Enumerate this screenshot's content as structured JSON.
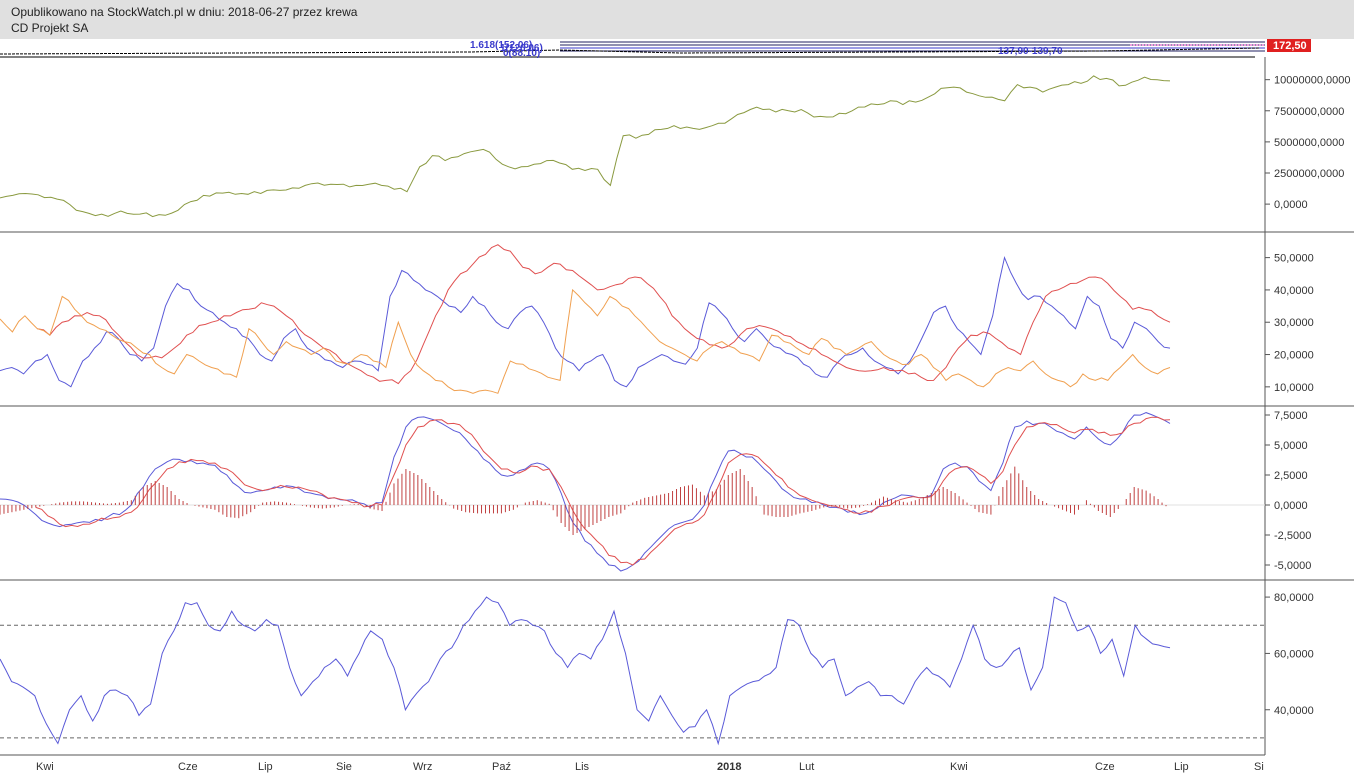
{
  "header": {
    "published": "Opublikowano na StockWatch.pl w dniu: 2018-06-27 przez krewa",
    "instrument": "CD Projekt SA"
  },
  "top_strip": {
    "price_tag": "172,50",
    "fib_labels": [
      "1.618(152.06)",
      "1(126.06)",
      "0(88.10)",
      "137,90-139,70"
    ],
    "price_tag_color": "#e02020"
  },
  "chart_data": [
    {
      "type": "line",
      "panel": "obv",
      "ylim": [
        -2000000,
        11500000
      ],
      "y_ticks": [
        10000000,
        7500000,
        5000000,
        2500000,
        0
      ],
      "y_tick_labels": [
        "10000000,0000",
        "7500000,0000",
        "5000000,0000",
        "2500000,0000",
        "0,0000"
      ],
      "series": [
        {
          "color": "#8a9a40",
          "values": [
            500000,
            700000,
            850000,
            750000,
            550000,
            300000,
            -500000,
            -750000,
            -800000,
            -750000,
            -750000,
            -800000,
            -1000000,
            -900000,
            -500000,
            200000,
            700000,
            900000,
            950000,
            850000,
            1000000,
            1100000,
            1100000,
            1300000,
            1500000,
            1700000,
            1600000,
            1600000,
            1500000,
            1600000,
            1500000,
            1200000,
            1000000,
            3000000,
            3900000,
            3500000,
            3800000,
            4200000,
            4400000,
            3600000,
            3000000,
            3000000,
            3200000,
            3500000,
            3300000,
            2800000,
            2700000,
            2800000,
            1500000,
            5500000,
            5300000,
            5600000,
            6000000,
            6300000,
            6200000,
            6000000,
            6300000,
            6500000,
            7200000,
            7600000,
            7600000,
            7400000,
            7500000,
            7600000,
            7000000,
            7000000,
            7300000,
            7500000,
            7800000,
            8000000,
            8300000,
            8000000,
            8200000,
            8600000,
            9300000,
            9400000,
            9000000,
            8700000,
            8600000,
            8300000,
            9600000,
            9400000,
            9000000,
            9400000,
            9600000,
            9700000,
            10300000,
            10100000,
            9500000,
            9800000,
            10200000,
            10000000,
            9900000
          ]
        }
      ]
    },
    {
      "type": "line",
      "panel": "adx",
      "ylim": [
        5000,
        57000
      ],
      "y_ticks": [
        50000,
        40000,
        30000,
        20000,
        10000
      ],
      "y_tick_labels": [
        "50,0000",
        "40,0000",
        "30,0000",
        "20,0000",
        "10,0000"
      ],
      "series": [
        {
          "color": "#5a5ad8",
          "values": [
            15000,
            16000,
            14000,
            18000,
            20000,
            12000,
            10000,
            18000,
            22000,
            27000,
            25000,
            20000,
            18000,
            22000,
            35000,
            42000,
            40000,
            35000,
            33000,
            30000,
            28000,
            25000,
            20000,
            18000,
            25000,
            28000,
            22000,
            20000,
            18000,
            16000,
            18000,
            17000,
            15000,
            38000,
            46000,
            43000,
            40000,
            38000,
            35000,
            33000,
            38000,
            35000,
            30000,
            28000,
            33000,
            35000,
            30000,
            22000,
            18000,
            15000,
            18000,
            20000,
            12000,
            10000,
            16000,
            18000,
            20000,
            18000,
            17000,
            22000,
            36000,
            33000,
            28000,
            24000,
            28000,
            24000,
            22000,
            20000,
            17000,
            14000,
            13000,
            18000,
            20000,
            22000,
            18000,
            16000,
            14000,
            18000,
            25000,
            33000,
            35000,
            28000,
            24000,
            20000,
            32000,
            50000,
            42000,
            37000,
            38000,
            35000,
            32000,
            28000,
            38000,
            35000,
            25000,
            22000,
            30000,
            28000,
            24000,
            22000
          ]
        },
        {
          "color": "#e05050",
          "values": [
            null,
            null,
            null,
            28000,
            26000,
            30000,
            32000,
            33000,
            32000,
            28000,
            24000,
            20000,
            19000,
            19000,
            22000,
            26000,
            29000,
            30000,
            32000,
            33000,
            34000,
            36000,
            35000,
            32000,
            28000,
            25000,
            22000,
            20000,
            17000,
            15000,
            13000,
            12000,
            11000,
            15000,
            23000,
            32000,
            40000,
            45000,
            48000,
            51000,
            54000,
            52000,
            47000,
            45000,
            47000,
            48000,
            46000,
            43000,
            40000,
            41000,
            42000,
            44000,
            42000,
            38000,
            32000,
            28000,
            25000,
            23000,
            22000,
            24000,
            28000,
            29000,
            28000,
            26000,
            24000,
            22000,
            20000,
            18000,
            16000,
            15000,
            15000,
            16000,
            15000,
            14000,
            13000,
            12000,
            16000,
            22000,
            26000,
            27000,
            25000,
            22000,
            20000,
            30000,
            38000,
            40000,
            42000,
            43000,
            44000,
            42000,
            38000,
            34000,
            34000,
            32000,
            30000
          ]
        },
        {
          "color": "#f0a050",
          "values": [
            31000,
            27000,
            32000,
            28000,
            26000,
            38000,
            34000,
            30000,
            28000,
            26000,
            24000,
            22000,
            20000,
            16000,
            14000,
            20000,
            18000,
            16000,
            14000,
            13000,
            28000,
            24000,
            20000,
            24000,
            22000,
            20000,
            22000,
            18000,
            17000,
            20000,
            18000,
            16000,
            30000,
            20000,
            15000,
            12000,
            10000,
            9000,
            8000,
            9000,
            8000,
            18000,
            17000,
            15000,
            13000,
            12000,
            40000,
            36000,
            32000,
            38000,
            35000,
            32000,
            28000,
            24000,
            22000,
            20000,
            18000,
            22000,
            24000,
            22000,
            20000,
            18000,
            26000,
            24000,
            22000,
            20000,
            25000,
            22000,
            20000,
            22000,
            24000,
            20000,
            18000,
            17000,
            20000,
            16000,
            12000,
            14000,
            12000,
            10000,
            14000,
            16000,
            15000,
            18000,
            14000,
            12000,
            10000,
            14000,
            12000,
            12000,
            16000,
            20000,
            16000,
            14000,
            16000
          ]
        }
      ]
    },
    {
      "type": "line",
      "panel": "macd",
      "ylim": [
        -6000,
        8000
      ],
      "y_ticks": [
        7500,
        5000,
        2500,
        0,
        -2500,
        -5000
      ],
      "y_tick_labels": [
        "7,5000",
        "5,0000",
        "2,5000",
        "0,0000",
        "-2,5000",
        "-5,0000"
      ],
      "series": [
        {
          "color": "#5a5ad8",
          "values": [
            500,
            400,
            0,
            -800,
            -1500,
            -1800,
            -1600,
            -1400,
            -1200,
            -1000,
            -800,
            0,
            1500,
            3000,
            3600,
            3800,
            3700,
            3500,
            3300,
            2500,
            1500,
            1000,
            1200,
            1500,
            1600,
            1400,
            1000,
            800,
            600,
            400,
            200,
            -200,
            200,
            4000,
            6500,
            7300,
            7200,
            6800,
            6200,
            5500,
            4500,
            3500,
            2500,
            2500,
            3000,
            3500,
            3000,
            1000,
            -1500,
            -3000,
            -4000,
            -5000,
            -5500,
            -5000,
            -4000,
            -3000,
            -2000,
            -1500,
            -1200,
            0,
            2500,
            4500,
            4300,
            4000,
            3000,
            2000,
            1000,
            500,
            200,
            0,
            -200,
            -600,
            -800,
            -500,
            200,
            600,
            800,
            600,
            800,
            3000,
            3500,
            3200,
            2000,
            1200,
            3500,
            6500,
            7000,
            6800,
            6500,
            6000,
            5500,
            6500,
            5500,
            5000,
            6000,
            7500,
            7700,
            7300,
            6800
          ]
        },
        {
          "color": "#e05050",
          "values": [
            null,
            null,
            null,
            -200,
            -900,
            -1600,
            -1700,
            -1600,
            -1400,
            -1200,
            -1000,
            -600,
            500,
            1800,
            3000,
            3600,
            3800,
            3700,
            3500,
            3000,
            2200,
            1500,
            1200,
            1400,
            1500,
            1500,
            1200,
            900,
            600,
            400,
            200,
            -100,
            0,
            2500,
            5000,
            6500,
            7000,
            7100,
            6800,
            6200,
            5200,
            4000,
            3000,
            2700,
            2900,
            3200,
            3000,
            1500,
            -500,
            -2000,
            -3000,
            -4200,
            -4800,
            -5000,
            -4500,
            -3500,
            -2500,
            -1800,
            -1500,
            -800,
            1200,
            3500,
            4200,
            4200,
            3500,
            2500,
            1500,
            800,
            400,
            100,
            -100,
            -400,
            -700,
            -600,
            -100,
            300,
            600,
            600,
            700,
            2000,
            3000,
            3200,
            2600,
            1800,
            2800,
            5000,
            6500,
            6800,
            6700,
            6400,
            6000,
            6300,
            6000,
            5800,
            6000,
            6800,
            7200,
            7300,
            7100
          ]
        },
        {
          "color": "#c04040",
          "type": "bar",
          "values": [
            -800,
            -600,
            -400,
            -200,
            0,
            200,
            300,
            300,
            200,
            100,
            200,
            400,
            1500,
            2000,
            1500,
            500,
            0,
            -200,
            -400,
            -1000,
            -1100,
            -600,
            200,
            300,
            200,
            0,
            -200,
            -300,
            -200,
            0,
            100,
            -300,
            -500,
            1800,
            3000,
            2500,
            1500,
            500,
            -300,
            -600,
            -700,
            -700,
            -700,
            -400,
            200,
            400,
            100,
            -1500,
            -2500,
            -2000,
            -1500,
            -1000,
            -700,
            200,
            600,
            800,
            1000,
            1500,
            1700,
            800,
            1300,
            2500,
            3000,
            1500,
            -800,
            -1000,
            -1000,
            -700,
            -500,
            -200,
            -100,
            -300,
            -200,
            200,
            700,
            400,
            200,
            500,
            1000,
            1500,
            1000,
            200,
            -600,
            -800,
            1500,
            3200,
            1500,
            500,
            0,
            -400,
            -800,
            400,
            -500,
            -1000,
            0,
            1500,
            1200,
            500,
            -400
          ]
        }
      ]
    },
    {
      "type": "line",
      "panel": "rsi",
      "ylim": [
        25,
        85
      ],
      "y_ticks": [
        80,
        60,
        40
      ],
      "y_tick_labels": [
        "80,0000",
        "60,0000",
        "40,0000"
      ],
      "reference_lines": [
        70,
        30
      ],
      "series": [
        {
          "color": "#5a5ad8",
          "values": [
            58,
            50,
            48,
            45,
            35,
            28,
            40,
            45,
            36,
            45,
            47,
            45,
            38,
            42,
            60,
            68,
            78,
            78,
            70,
            68,
            75,
            70,
            68,
            72,
            70,
            55,
            45,
            50,
            55,
            58,
            52,
            60,
            68,
            65,
            55,
            40,
            46,
            50,
            58,
            62,
            70,
            75,
            80,
            78,
            70,
            72,
            70,
            68,
            60,
            55,
            60,
            58,
            65,
            75,
            60,
            40,
            36,
            45,
            38,
            32,
            34,
            40,
            28,
            45,
            48,
            50,
            52,
            55,
            72,
            70,
            60,
            55,
            58,
            45,
            48,
            50,
            45,
            45,
            42,
            50,
            55,
            52,
            48,
            58,
            70,
            58,
            55,
            58,
            62,
            47,
            55,
            80,
            78,
            68,
            70,
            60,
            65,
            52,
            70,
            65,
            63,
            62
          ]
        }
      ]
    }
  ],
  "x_axis": {
    "tick_labels": [
      "Kwi",
      "Cze",
      "Lip",
      "Sie",
      "Wrz",
      "Paź",
      "Lis",
      "2018",
      "Lut",
      "Kwi",
      "Cze",
      "Lip",
      "Si"
    ]
  }
}
